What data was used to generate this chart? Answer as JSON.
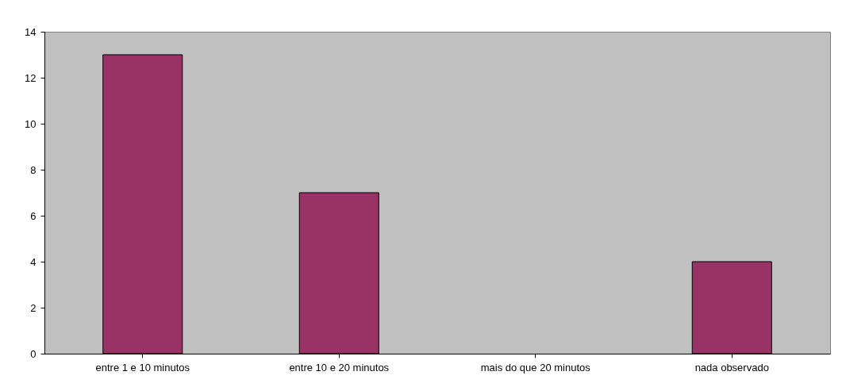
{
  "chart_data": {
    "type": "bar",
    "categories": [
      "entre 1 e 10 minutos",
      "entre 10 e 20 minutos",
      "mais do que 20 minutos",
      "nada observado"
    ],
    "values": [
      13,
      7,
      0,
      4
    ],
    "color": "#993366",
    "ylim": [
      0,
      14
    ],
    "yticks": [
      0,
      2,
      4,
      6,
      8,
      10,
      12,
      14
    ],
    "grid": false
  }
}
